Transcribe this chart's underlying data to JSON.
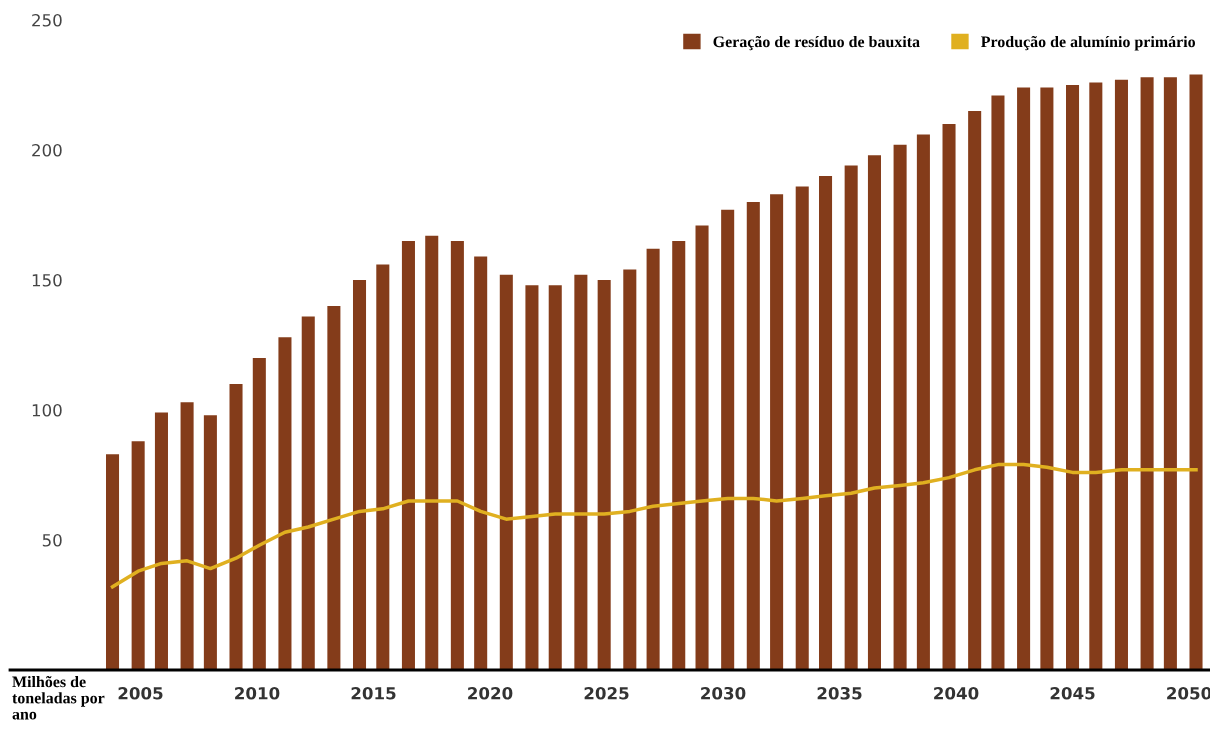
{
  "chart_data": {
    "type": "bar",
    "annotations": [
      "Milhões de\ntoneladas por\nano"
    ],
    "x": [
      2003.8,
      2004.9,
      2005.9,
      2007.0,
      2008.0,
      2009.1,
      2010.1,
      2011.2,
      2012.2,
      2013.3,
      2014.4,
      2015.4,
      2016.5,
      2017.5,
      2018.6,
      2019.6,
      2020.7,
      2021.8,
      2022.8,
      2023.9,
      2024.9,
      2026.0,
      2027.0,
      2028.1,
      2029.1,
      2030.2,
      2031.3,
      2032.3,
      2033.4,
      2034.4,
      2035.5,
      2036.5,
      2037.6,
      2038.6,
      2039.7,
      2040.8,
      2041.8,
      2042.9,
      2043.9,
      2045.0,
      2046.0,
      2047.1,
      2048.2,
      2049.2,
      2050.3
    ],
    "series": [
      {
        "name": "Geração de resíduo de bauxita",
        "color": "#843c1a",
        "values": [
          83,
          88,
          99,
          103,
          98,
          110,
          120,
          128,
          136,
          140,
          150,
          156,
          165,
          167,
          165,
          159,
          152,
          148,
          148,
          152,
          150,
          154,
          162,
          165,
          171,
          177,
          180,
          183,
          186,
          190,
          194,
          198,
          202,
          206,
          210,
          215,
          221,
          224,
          224,
          225,
          226,
          227,
          228,
          228,
          229
        ]
      },
      {
        "name": "Produção de alumínio primário",
        "type": "line",
        "color": "#e0b020",
        "values": [
          32,
          38,
          41,
          42,
          39,
          43,
          48,
          53,
          55,
          58,
          61,
          62,
          65,
          65,
          65,
          61,
          58,
          59,
          60,
          60,
          60,
          61,
          63,
          64,
          65,
          66,
          66,
          65,
          66,
          67,
          68,
          70,
          71,
          72,
          74,
          77,
          79,
          79,
          78,
          76,
          76,
          77,
          77,
          77,
          77
        ]
      }
    ],
    "xlim": [
      1999.4,
      2050.9
    ],
    "xticks": [
      2005,
      2010,
      2015,
      2020,
      2025,
      2030,
      2035,
      2040,
      2045,
      2050
    ],
    "ylim": [
      0,
      250
    ],
    "yticks": [
      50,
      100,
      150,
      200,
      250
    ],
    "grid": false,
    "legend": "top right",
    "line_style": "solid",
    "marker": "none"
  }
}
